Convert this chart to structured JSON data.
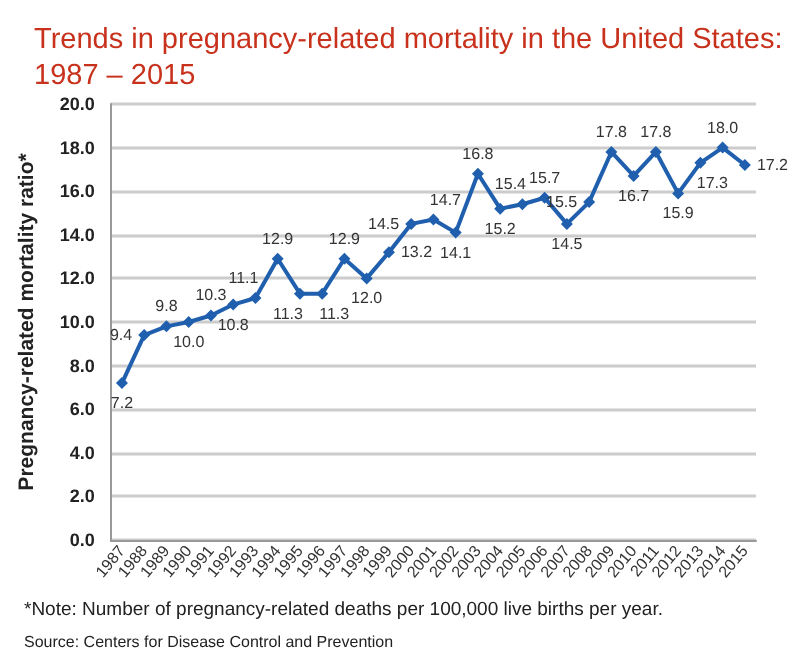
{
  "chart_data": {
    "type": "line",
    "title": "Trends in pregnancy-related mortality in the United States:\n1987 – 2015",
    "ylabel": "Pregnancy-related mortality ratio*",
    "annotations": [
      "*Note: Number of pregnancy-related deaths per 100,000 live births per year.",
      "Source: Centers for Disease Control and Prevention"
    ],
    "categories": [
      "1987",
      "1988",
      "1989",
      "1990",
      "1991",
      "1992",
      "1993",
      "1994",
      "1995",
      "1996",
      "1997",
      "1998",
      "1999",
      "2000",
      "2001",
      "2002",
      "2003",
      "2004",
      "2005",
      "2006",
      "2007",
      "2008",
      "2009",
      "2010",
      "2011",
      "2012",
      "2013",
      "2014",
      "2015"
    ],
    "series": [
      {
        "color": "#1f5fad",
        "values": [
          7.2,
          9.4,
          9.8,
          10.0,
          10.3,
          10.8,
          11.1,
          12.9,
          11.3,
          11.3,
          12.9,
          12.0,
          13.2,
          14.5,
          14.7,
          14.1,
          16.8,
          15.2,
          15.4,
          15.7,
          14.5,
          15.5,
          17.8,
          16.7,
          17.8,
          15.9,
          17.3,
          18.0,
          17.2
        ]
      }
    ],
    "ylim": [
      0,
      20
    ],
    "yticks": [
      {
        "value": 0,
        "label": "0.0"
      },
      {
        "value": 2,
        "label": "2.0"
      },
      {
        "value": 4,
        "label": "4.0"
      },
      {
        "value": 6,
        "label": "6.0"
      },
      {
        "value": 8,
        "label": "8.0"
      },
      {
        "value": 10,
        "label": "10.0"
      },
      {
        "value": 12,
        "label": "12.0"
      },
      {
        "value": 14,
        "label": "14.0"
      },
      {
        "value": 16,
        "label": "16.0"
      },
      {
        "value": 18,
        "label": "18.0"
      },
      {
        "value": 20,
        "label": "20.0"
      }
    ],
    "value_labels": [
      "7.2",
      "9.4",
      "9.8",
      "10.0",
      "10.3",
      "10.8",
      "11.1",
      "12.9",
      "11.3",
      "11.3",
      "12.9",
      "12.0",
      "13.2",
      "14.5",
      "14.7",
      "14.1",
      "16.8",
      "15.2",
      "15.4",
      "15.7",
      "14.5",
      "15.5",
      "17.8",
      "16.7",
      "17.8",
      "15.9",
      "17.3",
      "18.0",
      "17.2"
    ],
    "grid": "y",
    "marker": "diamond",
    "line_style": "solid"
  }
}
